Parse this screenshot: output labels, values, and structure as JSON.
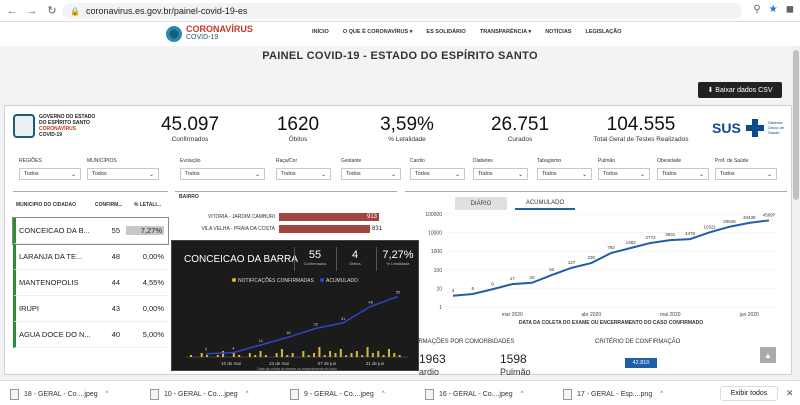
{
  "browser": {
    "url": "coronavirus.es.gov.br/painel-covid-19-es",
    "back": "←",
    "forward": "→",
    "reload": "↻",
    "lock_icon": "lock-icon"
  },
  "site": {
    "logo_title": "CORONAVÍRUS",
    "logo_sub": "COVID-19",
    "menu": [
      "INÍCIO",
      "O QUE É CORONAVÍRUS ▾",
      "ES SOLIDÁRIO",
      "TRANSPARÊNCIA ▾",
      "NOTÍCIAS",
      "LEGISLAÇÃO"
    ]
  },
  "page_title": "PAINEL COVID-19 - ESTADO DO ESPÍRITO SANTO",
  "csv_button": "⬇  Baixar dados CSV",
  "es_logo": {
    "line1": "GOVERNO DO ESTADO",
    "line2": "DO ESPÍRITO SANTO",
    "line3": "CORONAVÍRUS",
    "line4": "COVID-19"
  },
  "kpis": [
    {
      "value": "45.097",
      "label": "Confirmados"
    },
    {
      "value": "1620",
      "label": "Óbitos"
    },
    {
      "value": "3,59%",
      "label": "% Letalidade"
    },
    {
      "value": "26.751",
      "label": "Curados"
    },
    {
      "value": "104.555",
      "label": "Total Geral de Testes Realizados"
    }
  ],
  "sus": {
    "name": "SUS",
    "sub": "Sistema Único de Saúde"
  },
  "filters": [
    {
      "label": "REGIÕES",
      "value": "Todos"
    },
    {
      "label": "MUNICÍPIOS",
      "value": "Todos"
    },
    {
      "label": "Evolução",
      "value": "Todos"
    },
    {
      "label": "Raça/Cor",
      "value": "Todos"
    },
    {
      "label": "Gestante",
      "value": "Todos"
    },
    {
      "label": "Cardio",
      "value": "Todos"
    },
    {
      "label": "Diabetes",
      "value": "Todos"
    },
    {
      "label": "Tabagismo",
      "value": "Todos"
    },
    {
      "label": "Pulmão",
      "value": "Todos"
    },
    {
      "label": "Obesidade",
      "value": "Todos"
    },
    {
      "label": "Prof. de Saúde",
      "value": "Todos"
    }
  ],
  "muni_table": {
    "headers": [
      "MUNICÍPIO DO CIDADÃO",
      "CONFIRM...",
      "% LETALI..."
    ],
    "rows": [
      {
        "name": "CONCEICAO DA B...",
        "conf": "55",
        "let": "7,27%"
      },
      {
        "name": "LARANJA DA TE...",
        "conf": "48",
        "let": "0,00%"
      },
      {
        "name": "MANTENOPOLIS",
        "conf": "44",
        "let": "4,55%"
      },
      {
        "name": "IRUPI",
        "conf": "43",
        "let": "0,00%"
      },
      {
        "name": "AGUA DOCE DO N...",
        "conf": "40",
        "let": "5,00%"
      }
    ]
  },
  "bairro": {
    "title": "BAIRRO",
    "rows": [
      {
        "label": "VITORIA - JARDIM CAMBURI",
        "value": 913
      },
      {
        "label": "VILA VELHA - PRAIA DA COSTA",
        "value": 831
      }
    ]
  },
  "cum_chart": {
    "tabs": [
      "DIÁRIO",
      "ACUMULADO"
    ],
    "xlabel": "DATA DA COLETA DO EXAME OU ENCERRAMENTO DO CASO CONFIRMADO",
    "x_ticks": [
      "mar 2020",
      "abr 2020",
      "mai 2020",
      "jun 2020"
    ],
    "y_ticks": [
      "100000",
      "10000",
      "1000",
      "100",
      "10",
      "1"
    ],
    "point_labels": [
      "4",
      "5",
      "9",
      "17",
      "20",
      "52",
      "127",
      "230",
      "792",
      "1482",
      "2773",
      "3931",
      "4478",
      "10321",
      "20626",
      "33439",
      "45097"
    ]
  },
  "tooltip": {
    "title": "CONCEICAO DA BARRA",
    "stats": [
      {
        "value": "55",
        "label": "Confirmados"
      },
      {
        "value": "4",
        "label": "Óbitos"
      },
      {
        "value": "7,27%",
        "label": "% Letalidade"
      }
    ],
    "legend": [
      "NOTIFICAÇÕES CONFIRMADAS",
      "ACUMULADO"
    ],
    "x_ticks": [
      "10 de mai",
      "24 de mai",
      "07 de jun",
      "21 de jun"
    ],
    "xlabel": "Data da coleta do exame ou encerramento do caso",
    "point_labels": [
      "55",
      "46",
      "31",
      "26",
      "18",
      "11",
      "4",
      "3"
    ]
  },
  "chart_data": {
    "type": "line",
    "title": "",
    "xlabel": "DATA DA COLETA DO EXAME OU ENCERRAMENTO DO CASO CONFIRMADO",
    "ylabel": "",
    "y_scale": "log",
    "ylim": [
      1,
      100000
    ],
    "x": [
      "mar 2020",
      "",
      "",
      "",
      "abr 2020",
      "",
      "",
      "",
      "mai 2020",
      "",
      "",
      "",
      "jun 2020",
      "",
      "",
      "",
      ""
    ],
    "series": [
      {
        "values": [
          4,
          5,
          9,
          17,
          20,
          52,
          127,
          230,
          792,
          1482,
          2773,
          3931,
          4478,
          10321,
          20626,
          33439,
          45097
        ]
      }
    ]
  },
  "bottom_sections": [
    {
      "label": "FIRMAÇÕES POR COMORBIDADES"
    },
    {
      "label": "CRITÉRIO DE CONFIRMAÇÃO"
    }
  ],
  "comorb": [
    {
      "value": "1963",
      "label": "ardio"
    },
    {
      "value": "1598",
      "label": "Pulmão"
    }
  ],
  "criterio_value": "42.810",
  "downloads": [
    "18 - GERAL - Co....jpeg",
    "10 - GERAL - Co....jpeg",
    "9 - GERAL - Co....jpeg",
    "16 - GERAL - Co....jpeg",
    "17 - GERAL - Esp....png"
  ],
  "download_all": "Exibir todos",
  "colors": {
    "bar": "#a2453f",
    "line": "#1f5fa8",
    "tooltip_bar": "#e0b82a",
    "tooltip_line": "#2d46c8"
  }
}
